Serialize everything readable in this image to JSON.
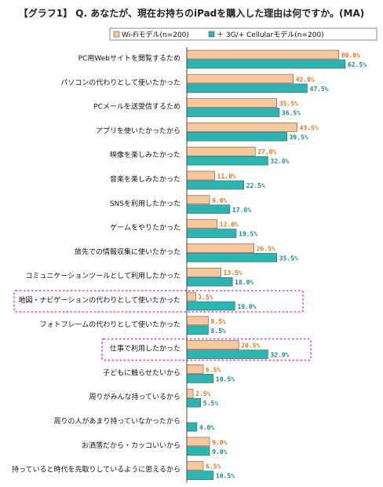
{
  "chart_data": {
    "type": "bar",
    "orientation": "horizontal",
    "title": "【グラフ1】 Q. あなたが、現在お持ちのiPadを購入した理由は何ですか。(MA)",
    "legend_position": "top-right",
    "categories": [
      "PC用Webサイトを閲覧するため",
      "パソコンの代わりとして使いたかった",
      "PCメールを送受信するため",
      "アプリを使いたかったから",
      "映像を楽しみたかった",
      "音楽を楽しみたかった",
      "SNSを利用したかった",
      "ゲームをやりたかった",
      "旅先での情報収集に使いたかった",
      "コミュニケーションツールとして利用したかった",
      "地図・ナビゲーションの代わりとして使いたかった",
      "フォトフレームの代わりとして使いたかった",
      "仕事で利用したかった",
      "子どもに触らせたいから",
      "周りがみんな持っているから",
      "周りの人があまり持っていなかったから",
      "お洒落だから・カッコいいから",
      "持っていると時代を先取りしているように思えるから"
    ],
    "series": [
      {
        "name": "Wi-Fiモデル(n=200)",
        "color": "#f8c89a",
        "values": [
          60.0,
          42.0,
          35.5,
          43.5,
          27.0,
          11.0,
          9.0,
          12.0,
          26.5,
          13.5,
          3.5,
          8.5,
          20.5,
          6.5,
          2.5,
          null,
          9.0,
          6.5
        ],
        "labels": [
          "60.0%",
          "42.0%",
          "35.5%",
          "43.5%",
          "27.0%",
          "11.0%",
          "9.0%",
          "12.0%",
          "26.5%",
          "13.5%",
          "3.5%",
          "8.5%",
          "20.5%",
          "6.5%",
          "2.5%",
          "",
          "9.0%",
          "6.5%"
        ]
      },
      {
        "name": "3G/+ Cellularモデル(n=200)",
        "color": "#29b6b2",
        "values": [
          62.5,
          47.5,
          36.5,
          39.5,
          32.0,
          22.5,
          17.0,
          19.5,
          35.5,
          18.0,
          19.0,
          8.5,
          32.0,
          10.5,
          5.5,
          4.0,
          9.0,
          10.5
        ],
        "labels": [
          "62.5%",
          "47.5%",
          "36.5%",
          "39.5%",
          "32.0%",
          "22.5%",
          "17.0%",
          "19.5%",
          "35.5%",
          "18.0%",
          "19.0%",
          "8.5%",
          "32.0%",
          "10.5%",
          "5.5%",
          "4.0%",
          "9.0%",
          "10.5%"
        ]
      }
    ],
    "label_colors": [
      "#e8731a",
      "#1a8a88"
    ],
    "highlighted_categories": [
      10,
      12
    ],
    "highlight_color": "#e84aa8",
    "xlim": [
      0,
      65
    ],
    "grid": false
  }
}
